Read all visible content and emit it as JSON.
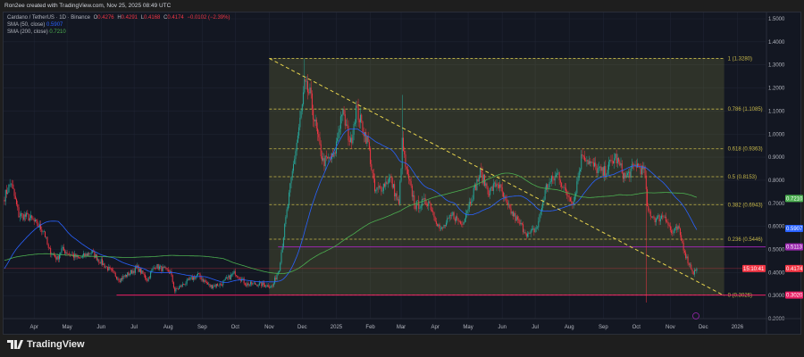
{
  "header": {
    "attribution": "Ron2ee created with TradingView.com, Nov 25, 2025 08:49 UTC"
  },
  "legend": {
    "symbol": "Cardano / TetherUS · 1D · Binance",
    "o_label": "O",
    "o": "0.4276",
    "h_label": "H",
    "h": "0.4291",
    "l_label": "L",
    "l": "0.4168",
    "c_label": "C",
    "c": "0.4174",
    "change": "−0.0102 (−2.39%)",
    "sma50_label": "SMA (50, close)",
    "sma50": "0.5907",
    "sma200_label": "SMA (200, close)",
    "sma200": "0.7210"
  },
  "footer": {
    "brand": "TradingView"
  },
  "colors": {
    "up": "#26a69a",
    "down": "#f23645",
    "sma50": "#2962ff",
    "sma200": "#4caf50",
    "fib": "#c8b94a",
    "support": "#9c27b0",
    "low_line": "#e91e63",
    "background": "#131722"
  },
  "chart_data": {
    "type": "candlestick",
    "price_axis": {
      "ticks": [
        "1.5000",
        "1.4000",
        "1.3000",
        "1.2000",
        "1.1000",
        "1.0000",
        "0.9000",
        "0.8000",
        "0.7000",
        "0.6000",
        "0.5000",
        "0.4000",
        "0.3000",
        "0.2000"
      ],
      "range": [
        0.2,
        1.5
      ]
    },
    "time_axis": {
      "ticks": [
        "Apr",
        "May",
        "Jun",
        "Jul",
        "Aug",
        "Sep",
        "Oct",
        "Nov",
        "Dec",
        "2025",
        "Feb",
        "Mar",
        "Apr",
        "May",
        "Jun",
        "Jul",
        "Aug",
        "Sep",
        "Oct",
        "Nov",
        "Dec",
        "2026"
      ],
      "tick_dates": [
        "2024-04-01",
        "2024-05-01",
        "2024-06-01",
        "2024-07-01",
        "2024-08-01",
        "2024-09-01",
        "2024-10-01",
        "2024-11-01",
        "2024-12-01",
        "2025-01-01",
        "2025-02-01",
        "2025-03-01",
        "2025-04-01",
        "2025-05-01",
        "2025-06-01",
        "2025-07-01",
        "2025-08-01",
        "2025-09-01",
        "2025-10-01",
        "2025-11-01",
        "2025-12-01",
        "2026-01-01"
      ]
    },
    "approx_closes": [
      [
        "2024-03-05",
        0.73
      ],
      [
        "2024-03-11",
        0.79
      ],
      [
        "2024-03-18",
        0.65
      ],
      [
        "2024-03-27",
        0.64
      ],
      [
        "2024-04-10",
        0.58
      ],
      [
        "2024-04-14",
        0.5
      ],
      [
        "2024-04-22",
        0.46
      ],
      [
        "2024-04-26",
        0.5
      ],
      [
        "2024-05-12",
        0.46
      ],
      [
        "2024-05-23",
        0.49
      ],
      [
        "2024-06-02",
        0.44
      ],
      [
        "2024-06-18",
        0.37
      ],
      [
        "2024-07-04",
        0.42
      ],
      [
        "2024-07-13",
        0.37
      ],
      [
        "2024-07-20",
        0.43
      ],
      [
        "2024-08-03",
        0.4
      ],
      [
        "2024-08-07",
        0.32
      ],
      [
        "2024-08-15",
        0.35
      ],
      [
        "2024-08-28",
        0.39
      ],
      [
        "2024-09-08",
        0.34
      ],
      [
        "2024-09-18",
        0.35
      ],
      [
        "2024-10-01",
        0.4
      ],
      [
        "2024-10-11",
        0.35
      ],
      [
        "2024-10-23",
        0.35
      ],
      [
        "2024-11-04",
        0.34
      ],
      [
        "2024-11-10",
        0.42
      ],
      [
        "2024-11-16",
        0.63
      ],
      [
        "2024-11-24",
        0.9
      ],
      [
        "2024-12-01",
        1.12
      ],
      [
        "2024-12-03",
        1.21
      ],
      [
        "2024-12-08",
        1.17
      ],
      [
        "2024-12-16",
        0.96
      ],
      [
        "2024-12-20",
        0.88
      ],
      [
        "2024-12-30",
        0.9
      ],
      [
        "2025-01-06",
        1.1
      ],
      [
        "2025-01-14",
        0.96
      ],
      [
        "2025-01-19",
        1.11
      ],
      [
        "2025-01-30",
        0.96
      ],
      [
        "2025-02-05",
        0.75
      ],
      [
        "2025-02-11",
        0.77
      ],
      [
        "2025-02-19",
        0.81
      ],
      [
        "2025-02-27",
        0.69
      ],
      [
        "2025-03-02",
        0.96
      ],
      [
        "2025-03-06",
        0.83
      ],
      [
        "2025-03-14",
        0.69
      ],
      [
        "2025-03-26",
        0.71
      ],
      [
        "2025-04-06",
        0.58
      ],
      [
        "2025-04-17",
        0.65
      ],
      [
        "2025-04-25",
        0.61
      ],
      [
        "2025-05-12",
        0.83
      ],
      [
        "2025-05-20",
        0.75
      ],
      [
        "2025-05-28",
        0.79
      ],
      [
        "2025-06-05",
        0.69
      ],
      [
        "2025-06-17",
        0.61
      ],
      [
        "2025-06-25",
        0.56
      ],
      [
        "2025-07-03",
        0.6
      ],
      [
        "2025-07-11",
        0.77
      ],
      [
        "2025-07-22",
        0.83
      ],
      [
        "2025-07-28",
        0.75
      ],
      [
        "2025-08-05",
        0.71
      ],
      [
        "2025-08-13",
        0.92
      ],
      [
        "2025-08-20",
        0.87
      ],
      [
        "2025-09-01",
        0.83
      ],
      [
        "2025-09-12",
        0.9
      ],
      [
        "2025-09-21",
        0.81
      ],
      [
        "2025-10-01",
        0.87
      ],
      [
        "2025-10-09",
        0.83
      ],
      [
        "2025-10-11",
        0.67
      ],
      [
        "2025-10-19",
        0.63
      ],
      [
        "2025-10-27",
        0.65
      ],
      [
        "2025-11-02",
        0.57
      ],
      [
        "2025-11-08",
        0.59
      ],
      [
        "2025-11-16",
        0.46
      ],
      [
        "2025-11-22",
        0.4
      ],
      [
        "2025-11-25",
        0.4174
      ]
    ],
    "notable_wicks": [
      [
        "2024-12-03",
        1.328
      ],
      [
        "2025-03-02",
        1.17
      ],
      [
        "2025-10-10",
        0.27
      ]
    ],
    "fibonacci": {
      "start_date": "2024-11-01",
      "end_date": "2025-12-20",
      "levels": [
        {
          "ratio": "1",
          "price": 1.328,
          "label": "1 (1.3280)"
        },
        {
          "ratio": "0.786",
          "price": 1.1085,
          "label": "0.786 (1.1085)"
        },
        {
          "ratio": "0.618",
          "price": 0.9363,
          "label": "0.618 (0.9363)"
        },
        {
          "ratio": "0.5",
          "price": 0.8153,
          "label": "0.5 (0.8153)"
        },
        {
          "ratio": "0.382",
          "price": 0.6943,
          "label": "0.382 (0.6943)"
        },
        {
          "ratio": "0.236",
          "price": 0.5446,
          "label": "0.236 (0.5446)"
        },
        {
          "ratio": "0",
          "price": 0.3026,
          "label": "0 (0.3026)"
        }
      ]
    },
    "trendline": {
      "from": [
        "2024-11-01",
        1.328
      ],
      "to": [
        "2025-12-20",
        0.3
      ]
    },
    "horizontal_lines": [
      {
        "price": 0.5113,
        "from": "2024-11-09"
      },
      {
        "price": 0.302,
        "from": "2024-06-15"
      }
    ],
    "price_labels": [
      {
        "text": "0.7210",
        "price": 0.721,
        "color": "#4caf50"
      },
      {
        "text": "0.5907",
        "price": 0.5907,
        "color": "#2962ff"
      },
      {
        "text": "0.5113",
        "price": 0.5113,
        "color": "#9c27b0"
      },
      {
        "text": "0.4174",
        "sub": "15:10:41",
        "price": 0.4174,
        "color": "#f23645"
      },
      {
        "text": "0.3020",
        "price": 0.302,
        "color": "#e91e63"
      }
    ]
  }
}
